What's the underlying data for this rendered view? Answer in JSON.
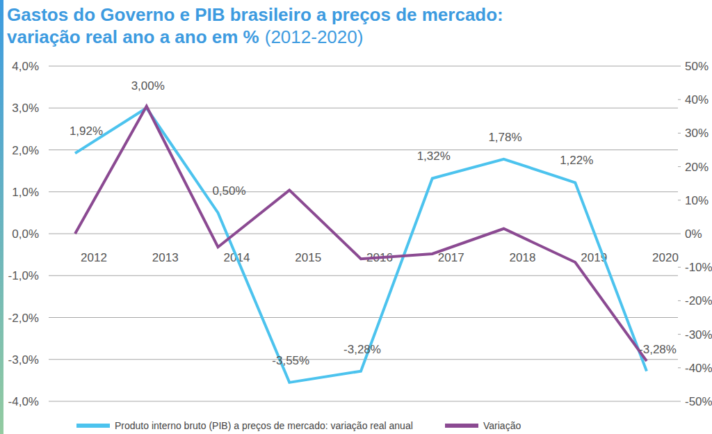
{
  "chart_data": {
    "type": "line",
    "title": "Gastos do Governo e PIB brasileiro a preços de mercado: variação real ano a ano em %",
    "subtitle": "(2012-2020)",
    "categories": [
      "2012",
      "2013",
      "2014",
      "2015",
      "2016",
      "2017",
      "2018",
      "2019",
      "2020"
    ],
    "series": [
      {
        "name": "Produto interno bruto (PIB) a preços de mercado: variação real anual",
        "color": "#4cc3ee",
        "values": [
          1.92,
          3.0,
          0.5,
          -3.55,
          -3.28,
          1.32,
          1.78,
          1.22,
          -3.28
        ],
        "value_labels": [
          "1,92%",
          "3,00%",
          "0,50%",
          "-3,55%",
          "-3,28%",
          "1,32%",
          "1,78%",
          "1,22%",
          "-3,28%"
        ],
        "data_labels": true
      },
      {
        "name": "Variação",
        "color": "#8b4a92",
        "axis": "y2",
        "values": [
          0,
          38,
          -4,
          13,
          -7.5,
          -6,
          1.5,
          -8.5,
          -38
        ]
      }
    ],
    "ylim": [
      -4,
      4
    ],
    "yticks": [
      {
        "value": -4,
        "label": "-4,0%"
      },
      {
        "value": -3,
        "label": "-3,0%"
      },
      {
        "value": -2,
        "label": "-2,0%"
      },
      {
        "value": -1,
        "label": "-1,0%"
      },
      {
        "value": 0,
        "label": "0,0%"
      },
      {
        "value": 1,
        "label": "1,0%"
      },
      {
        "value": 2,
        "label": "2,0%"
      },
      {
        "value": 3,
        "label": "3,0%"
      },
      {
        "value": 4,
        "label": "4,0%"
      }
    ],
    "y2lim": [
      -50,
      50
    ],
    "y2ticks": [
      {
        "value": -50,
        "label": "-50%"
      },
      {
        "value": -40,
        "label": "-40%"
      },
      {
        "value": -30,
        "label": "-30%"
      },
      {
        "value": -20,
        "label": "-20%"
      },
      {
        "value": -10,
        "label": "-10%"
      },
      {
        "value": 0,
        "label": "0%"
      },
      {
        "value": 10,
        "label": "10%"
      },
      {
        "value": 20,
        "label": "20%"
      },
      {
        "value": 30,
        "label": "30%"
      },
      {
        "value": 40,
        "label": "40%"
      },
      {
        "value": 50,
        "label": "50%"
      }
    ],
    "grid": true,
    "legend": "bottom"
  }
}
